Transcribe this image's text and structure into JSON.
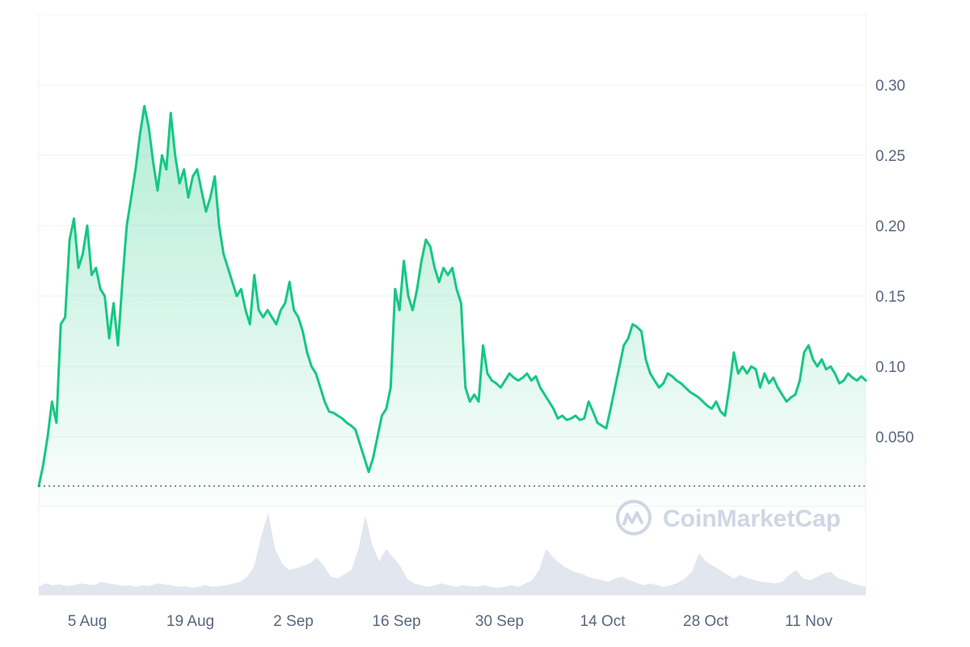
{
  "chart_data": {
    "type": "area",
    "x_tick_labels": [
      "5 Aug",
      "19 Aug",
      "2 Sep",
      "16 Sep",
      "30 Sep",
      "14 Oct",
      "28 Oct",
      "11 Nov"
    ],
    "y_tick_labels": [
      "0.050",
      "0.10",
      "0.15",
      "0.20",
      "0.25",
      "0.30"
    ],
    "ylim": [
      0.015,
      0.35
    ],
    "grid": true,
    "y_axis_side": "right",
    "reference_line_value": 0.015,
    "series": [
      {
        "values": [
          0.015,
          0.03,
          0.05,
          0.075,
          0.06,
          0.13,
          0.135,
          0.19,
          0.205,
          0.17,
          0.18,
          0.2,
          0.165,
          0.17,
          0.155,
          0.15,
          0.12,
          0.145,
          0.115,
          0.16,
          0.2,
          0.22,
          0.24,
          0.265,
          0.285,
          0.27,
          0.245,
          0.225,
          0.25,
          0.24,
          0.28,
          0.25,
          0.23,
          0.24,
          0.22,
          0.235,
          0.24,
          0.225,
          0.21,
          0.22,
          0.235,
          0.2,
          0.18,
          0.17,
          0.16,
          0.15,
          0.155,
          0.14,
          0.13,
          0.165,
          0.14,
          0.135,
          0.14,
          0.135,
          0.13,
          0.14,
          0.145,
          0.16,
          0.14,
          0.135,
          0.125,
          0.11,
          0.1,
          0.095,
          0.085,
          0.075,
          0.068,
          0.067,
          0.065,
          0.063,
          0.06,
          0.058,
          0.055,
          0.045,
          0.035,
          0.025,
          0.035,
          0.05,
          0.065,
          0.07,
          0.085,
          0.155,
          0.14,
          0.175,
          0.15,
          0.14,
          0.155,
          0.175,
          0.19,
          0.185,
          0.17,
          0.16,
          0.17,
          0.165,
          0.17,
          0.155,
          0.145,
          0.085,
          0.075,
          0.08,
          0.075,
          0.115,
          0.095,
          0.09,
          0.088,
          0.085,
          0.09,
          0.095,
          0.092,
          0.09,
          0.092,
          0.095,
          0.09,
          0.093,
          0.085,
          0.08,
          0.075,
          0.07,
          0.063,
          0.065,
          0.062,
          0.063,
          0.065,
          0.062,
          0.063,
          0.075,
          0.068,
          0.06,
          0.058,
          0.056,
          0.07,
          0.085,
          0.1,
          0.115,
          0.12,
          0.13,
          0.128,
          0.125,
          0.105,
          0.095,
          0.09,
          0.085,
          0.088,
          0.095,
          0.093,
          0.09,
          0.088,
          0.085,
          0.082,
          0.08,
          0.078,
          0.075,
          0.072,
          0.07,
          0.075,
          0.068,
          0.065,
          0.085,
          0.11,
          0.095,
          0.1,
          0.095,
          0.1,
          0.098,
          0.085,
          0.095,
          0.088,
          0.092,
          0.085,
          0.08,
          0.075,
          0.078,
          0.08,
          0.09,
          0.11,
          0.115,
          0.105,
          0.1,
          0.105,
          0.098,
          0.1,
          0.095,
          0.088,
          0.09,
          0.095,
          0.092,
          0.09,
          0.093,
          0.09
        ]
      }
    ],
    "volume_values": [
      0.1,
      0.14,
      0.12,
      0.13,
      0.11,
      0.12,
      0.14,
      0.13,
      0.12,
      0.16,
      0.14,
      0.13,
      0.11,
      0.12,
      0.1,
      0.12,
      0.11,
      0.14,
      0.13,
      0.12,
      0.1,
      0.11,
      0.09,
      0.1,
      0.12,
      0.1,
      0.11,
      0.12,
      0.14,
      0.16,
      0.22,
      0.35,
      0.7,
      0.98,
      0.55,
      0.38,
      0.3,
      0.32,
      0.35,
      0.38,
      0.45,
      0.35,
      0.22,
      0.2,
      0.25,
      0.3,
      0.55,
      0.95,
      0.6,
      0.4,
      0.55,
      0.45,
      0.35,
      0.2,
      0.14,
      0.12,
      0.1,
      0.12,
      0.14,
      0.12,
      0.1,
      0.12,
      0.11,
      0.1,
      0.12,
      0.1,
      0.09,
      0.1,
      0.12,
      0.1,
      0.14,
      0.18,
      0.3,
      0.55,
      0.45,
      0.38,
      0.32,
      0.28,
      0.26,
      0.22,
      0.2,
      0.18,
      0.16,
      0.2,
      0.22,
      0.18,
      0.15,
      0.12,
      0.14,
      0.12,
      0.1,
      0.12,
      0.15,
      0.2,
      0.28,
      0.5,
      0.4,
      0.35,
      0.3,
      0.25,
      0.2,
      0.24,
      0.2,
      0.18,
      0.16,
      0.15,
      0.14,
      0.16,
      0.24,
      0.3,
      0.2,
      0.18,
      0.22,
      0.26,
      0.28,
      0.2,
      0.18,
      0.14,
      0.12,
      0.1
    ],
    "watermark": "CoinMarketCap",
    "colors": {
      "line": "#16c784",
      "area_top": "#16c784",
      "volume": "#e2e6ef",
      "grid": "#eff2f5",
      "tick_text": "#58667e",
      "reference_line": "#58667e",
      "watermark": "#cfd6e4"
    }
  }
}
